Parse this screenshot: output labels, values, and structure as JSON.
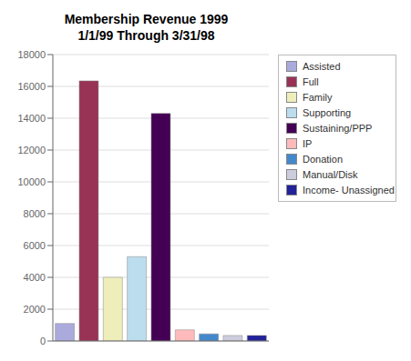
{
  "chart_data": {
    "type": "bar",
    "title": "Membership Revenue 1999",
    "subtitle": "1/1/99 Through 3/31/98",
    "categories": [
      "Assisted",
      "Full",
      "Family",
      "Supporting",
      "Sustaining/PPP",
      "IP",
      "Donation",
      "Manual/Disk",
      "Income- Unassigned"
    ],
    "values": [
      1100,
      16350,
      4000,
      5300,
      14300,
      700,
      450,
      350,
      350
    ],
    "colors": [
      "#aaaadd",
      "#993355",
      "#eeeebb",
      "#bbddee",
      "#440055",
      "#ffbbbb",
      "#4488cc",
      "#ccccdd",
      "#222299"
    ],
    "ylim": [
      0,
      18000
    ],
    "yticks": [
      0,
      2000,
      4000,
      6000,
      8000,
      10000,
      12000,
      14000,
      16000,
      18000
    ],
    "grid": true,
    "legend": "right",
    "tick_labels": "y"
  }
}
